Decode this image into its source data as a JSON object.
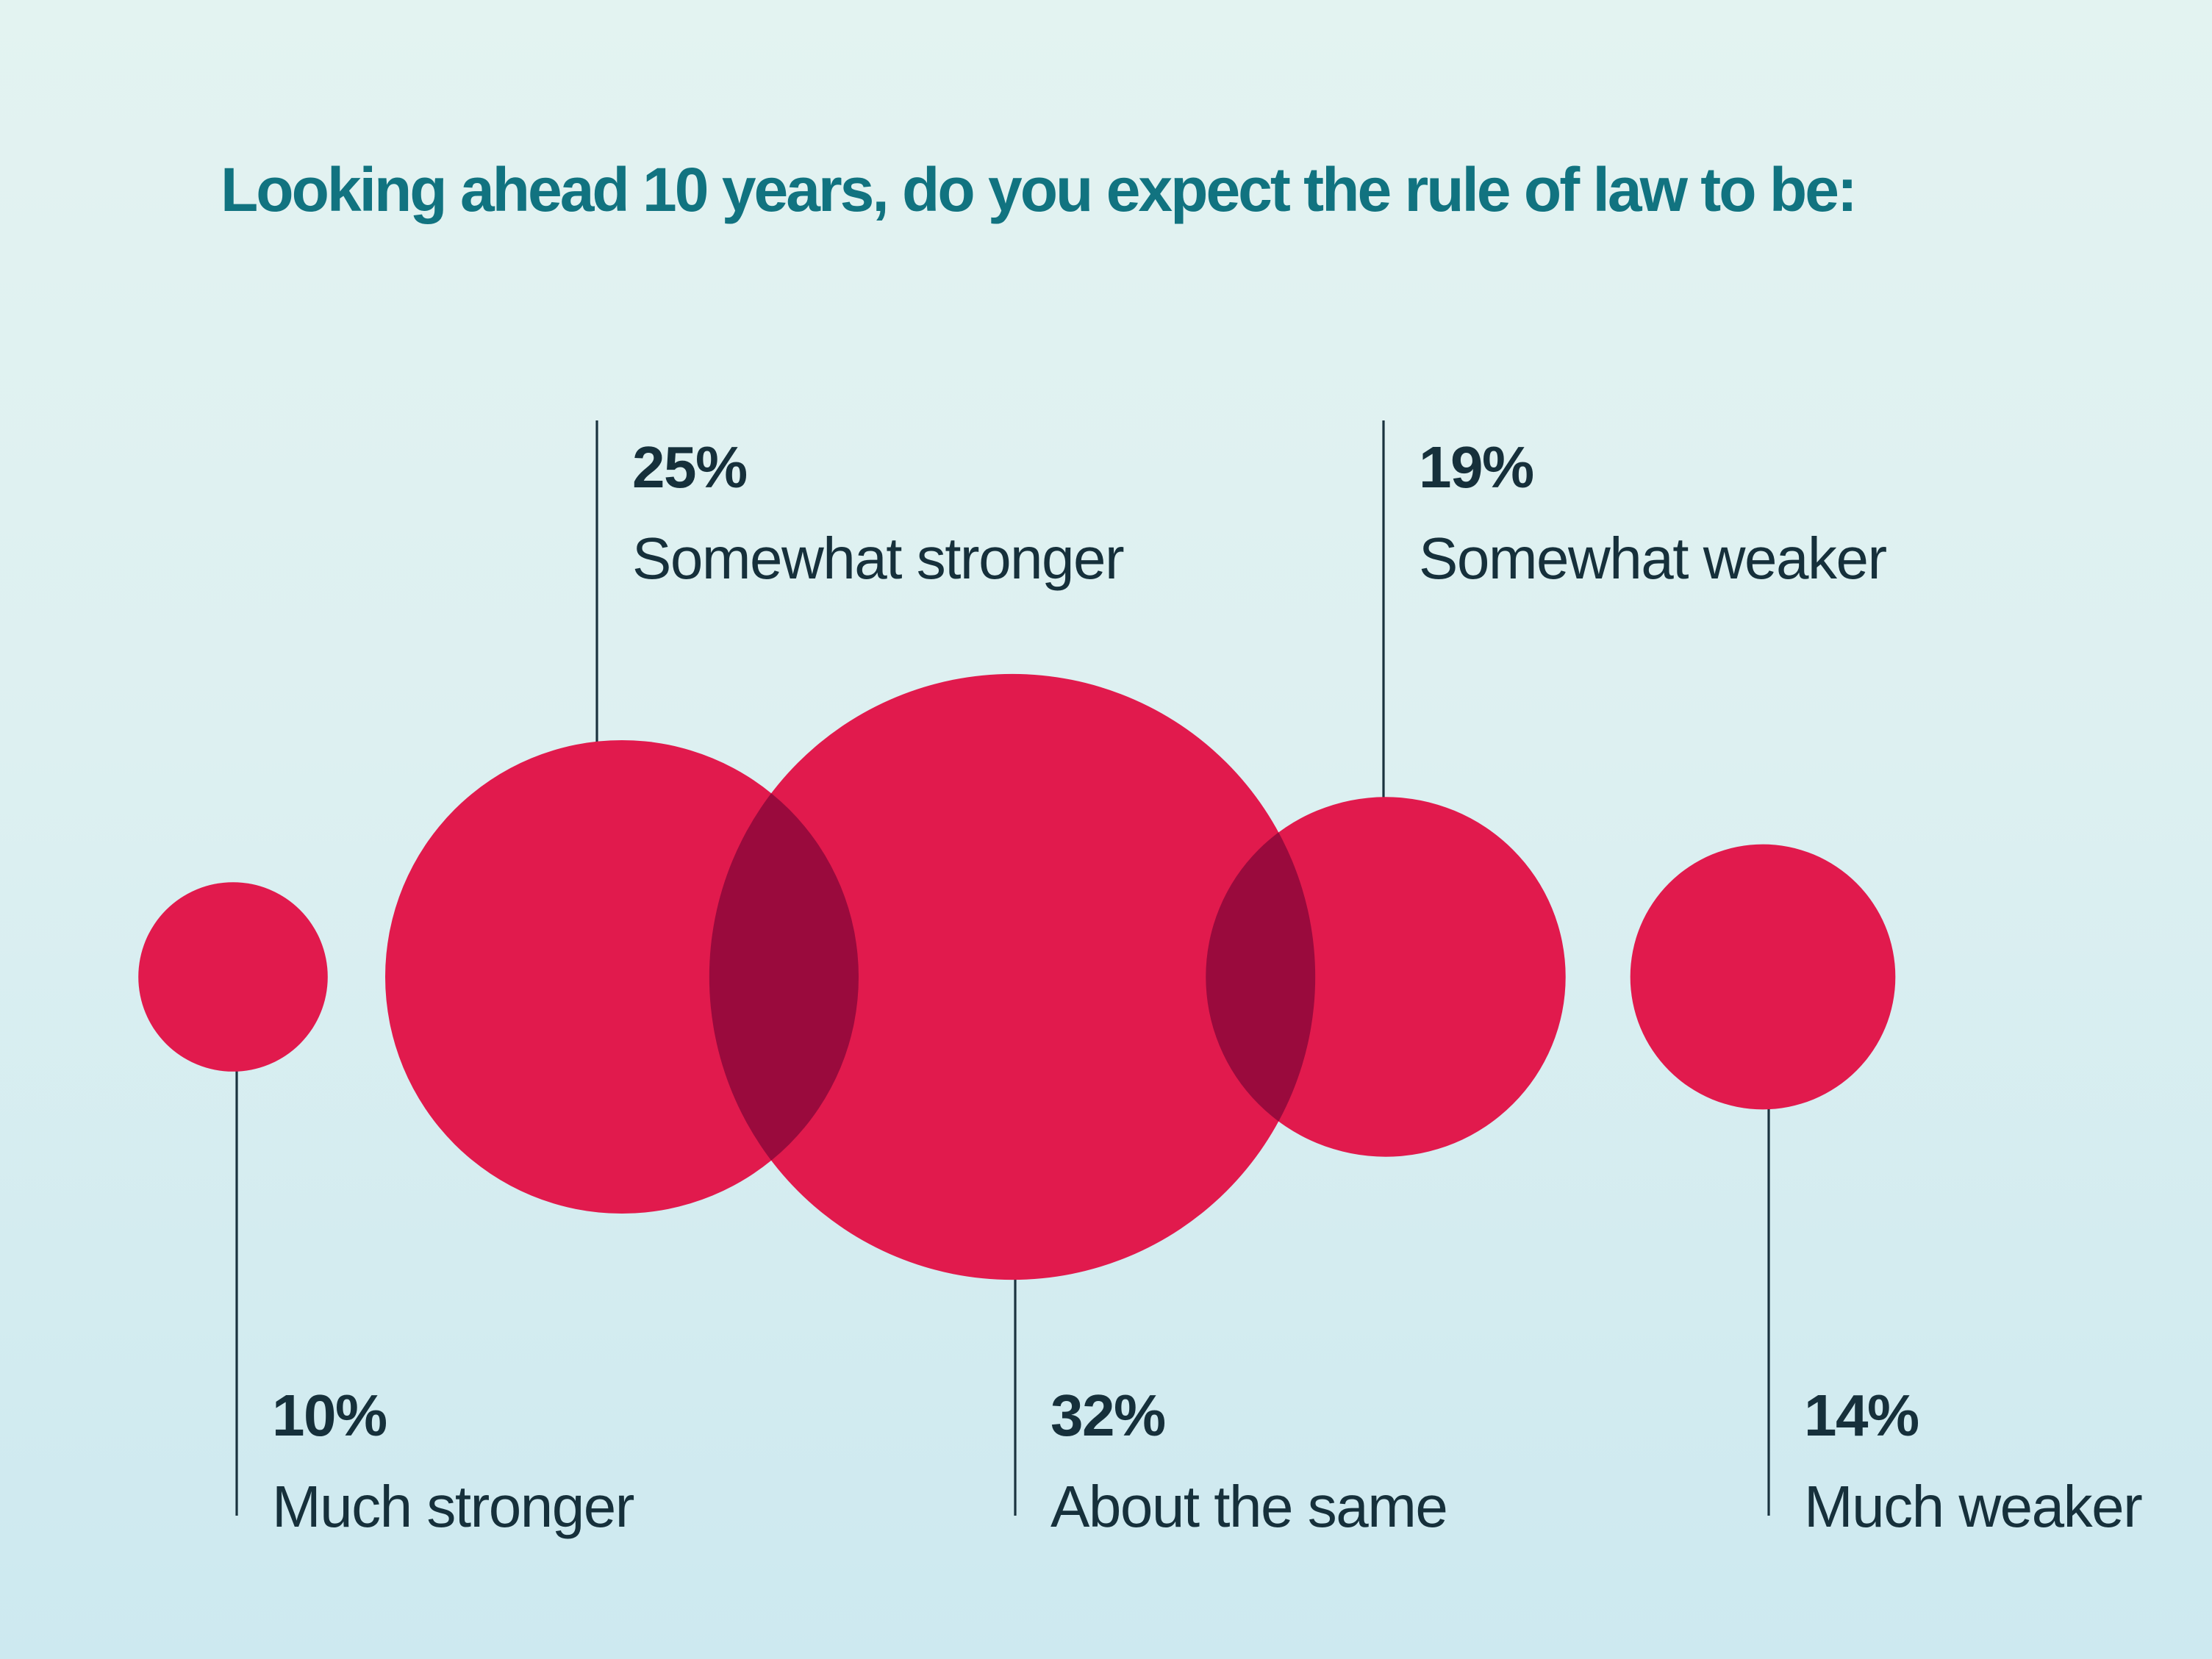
{
  "chart_data": {
    "type": "bubble",
    "title": "Looking ahead 10 years, do you expect the rule of law to be:",
    "value_suffix": "%",
    "radius_mode": "radius-proportional-to-value",
    "legend": "none",
    "axes": "none",
    "series": [
      {
        "label": "Much stronger",
        "pct_label": "10%",
        "value": 10,
        "callout_position": "below"
      },
      {
        "label": "Somewhat stronger",
        "pct_label": "25%",
        "value": 25,
        "callout_position": "above"
      },
      {
        "label": "About the same",
        "pct_label": "32%",
        "value": 32,
        "callout_position": "below"
      },
      {
        "label": "Somewhat weaker",
        "pct_label": "19%",
        "value": 19,
        "callout_position": "above"
      },
      {
        "label": "Much weaker",
        "pct_label": "14%",
        "value": 14,
        "callout_position": "below"
      }
    ],
    "colors": {
      "bubble": "#e11a4d",
      "bubble_overlap": "#9a0a3d",
      "connector_line": "#1a333f",
      "label_text": "#16303b",
      "title_text": "#117380",
      "background_top": "#e3f3f1",
      "background_mid": "#ddf0f1",
      "background_bottom": "#cde9f0"
    }
  }
}
